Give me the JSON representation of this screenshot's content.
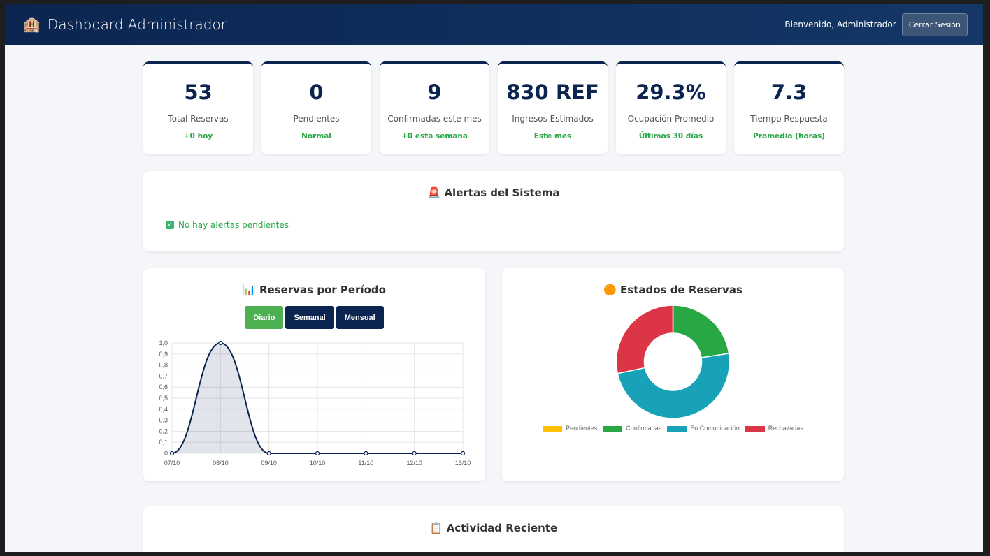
{
  "header": {
    "title": "Dashboard Administrador",
    "logo_icon": "hotel-icon",
    "welcome": "Bienvenido, Administrador",
    "logout": "Cerrar Sesión"
  },
  "stats": [
    {
      "value": "53",
      "label": "Total Reservas",
      "sub": "+0 hoy"
    },
    {
      "value": "0",
      "label": "Pendientes",
      "sub": "Normal"
    },
    {
      "value": "9",
      "label": "Confirmadas este mes",
      "sub": "+0 esta semana"
    },
    {
      "value": "830 REF",
      "label": "Ingresos Estimados",
      "sub": "Este mes"
    },
    {
      "value": "29.3%",
      "label": "Ocupación Promedio",
      "sub": "Últimos 30 días"
    },
    {
      "value": "7.3",
      "label": "Tiempo Respuesta",
      "sub": "Promedio (horas)"
    }
  ],
  "alerts": {
    "title": "Alertas del Sistema",
    "icon": "siren-icon",
    "message": "No hay alertas pendientes"
  },
  "period": {
    "title": "Reservas por Período",
    "icon": "bar-chart-icon",
    "buttons": [
      "Diario",
      "Semanal",
      "Mensual"
    ],
    "active": "Diario"
  },
  "states": {
    "title": "Estados de Reservas",
    "icon": "orb-icon"
  },
  "activity": {
    "title": "Actividad Reciente",
    "icon": "clipboard-icon"
  },
  "colors": {
    "accent": "#0b2550",
    "success": "#28a745",
    "active_btn": "#4caf50"
  },
  "chart_data": [
    {
      "type": "area",
      "categories": [
        "07/10",
        "08/10",
        "09/10",
        "10/10",
        "11/10",
        "12/10",
        "13/10"
      ],
      "values": [
        0,
        1,
        0,
        0,
        0,
        0,
        0
      ],
      "ylim": [
        0,
        1
      ],
      "yticks": [
        "0",
        "0,1",
        "0,2",
        "0,3",
        "0,4",
        "0,5",
        "0,6",
        "0,7",
        "0,8",
        "0,9",
        "1,0"
      ],
      "grid": true
    },
    {
      "type": "pie",
      "donut": true,
      "categories": [
        "Pendientes",
        "Confirmadas",
        "En Comunicación",
        "Rechazadas"
      ],
      "values": [
        0,
        12,
        26,
        15
      ],
      "colors": [
        "#ffc107",
        "#28a745",
        "#17a2b8",
        "#dc3545"
      ],
      "legend": "bottom"
    }
  ]
}
